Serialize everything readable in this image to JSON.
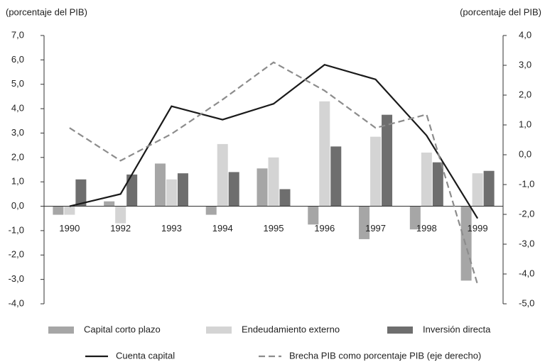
{
  "chart_data": {
    "type": "bar",
    "y_label": "(porcentaje del PIB)",
    "y2_label": "(porcentaje del PIB)",
    "categories": [
      "1990",
      "1992",
      "1993",
      "1994",
      "1995",
      "1996",
      "1997",
      "1998",
      "1999"
    ],
    "series": [
      {
        "name": "Capital corto plazo",
        "type": "bar",
        "color": "#a6a6a6",
        "values": [
          -0.35,
          0.2,
          1.75,
          -0.35,
          1.55,
          -0.75,
          -1.35,
          -0.95,
          -3.05
        ]
      },
      {
        "name": "Endeudamiento externo",
        "type": "bar",
        "color": "#d4d4d4",
        "values": [
          -0.35,
          -0.7,
          1.1,
          2.55,
          2.0,
          4.3,
          2.85,
          2.2,
          1.35
        ]
      },
      {
        "name": "Inversión directa",
        "type": "bar",
        "color": "#6e6e6e",
        "values": [
          1.1,
          1.3,
          1.35,
          1.4,
          0.7,
          2.45,
          3.75,
          1.8,
          1.45
        ]
      },
      {
        "name": "Cuenta capital",
        "type": "line",
        "color": "#1a1a1a",
        "dashed": false,
        "values": [
          0.0,
          0.5,
          4.1,
          3.55,
          4.2,
          5.8,
          5.2,
          2.9,
          -0.5
        ]
      },
      {
        "name": "Brecha PIB como porcentaje PIB (eje derecho)",
        "type": "line",
        "axis": "y2",
        "color": "#8c8c8c",
        "dashed": true,
        "values": [
          0.9,
          -0.2,
          0.7,
          1.85,
          3.1,
          2.15,
          0.9,
          1.35,
          -4.35
        ]
      }
    ],
    "ylim": [
      -4,
      7
    ],
    "yticks": [
      {
        "value": -4,
        "label": "-4,0"
      },
      {
        "value": -3,
        "label": "-3,0"
      },
      {
        "value": -2,
        "label": "-2,0"
      },
      {
        "value": -1,
        "label": "-1,0"
      },
      {
        "value": 0,
        "label": "0,0"
      },
      {
        "value": 1,
        "label": "1,0"
      },
      {
        "value": 2,
        "label": "2,0"
      },
      {
        "value": 3,
        "label": "3,0"
      },
      {
        "value": 4,
        "label": "4,0"
      },
      {
        "value": 5,
        "label": "5,0"
      },
      {
        "value": 6,
        "label": "6,0"
      },
      {
        "value": 7,
        "label": "7,0"
      }
    ],
    "y2lim": [
      -5,
      4
    ],
    "y2ticks": [
      {
        "value": -5,
        "label": "-5,0"
      },
      {
        "value": -4,
        "label": "-4,0"
      },
      {
        "value": -3,
        "label": "-3,0"
      },
      {
        "value": -2,
        "label": "-2,0"
      },
      {
        "value": -1,
        "label": "-1,0"
      },
      {
        "value": 0,
        "label": "0,0"
      },
      {
        "value": 1,
        "label": "1,0"
      },
      {
        "value": 2,
        "label": "2,0"
      },
      {
        "value": 3,
        "label": "3,0"
      },
      {
        "value": 4,
        "label": "4,0"
      }
    ],
    "grid": false
  }
}
